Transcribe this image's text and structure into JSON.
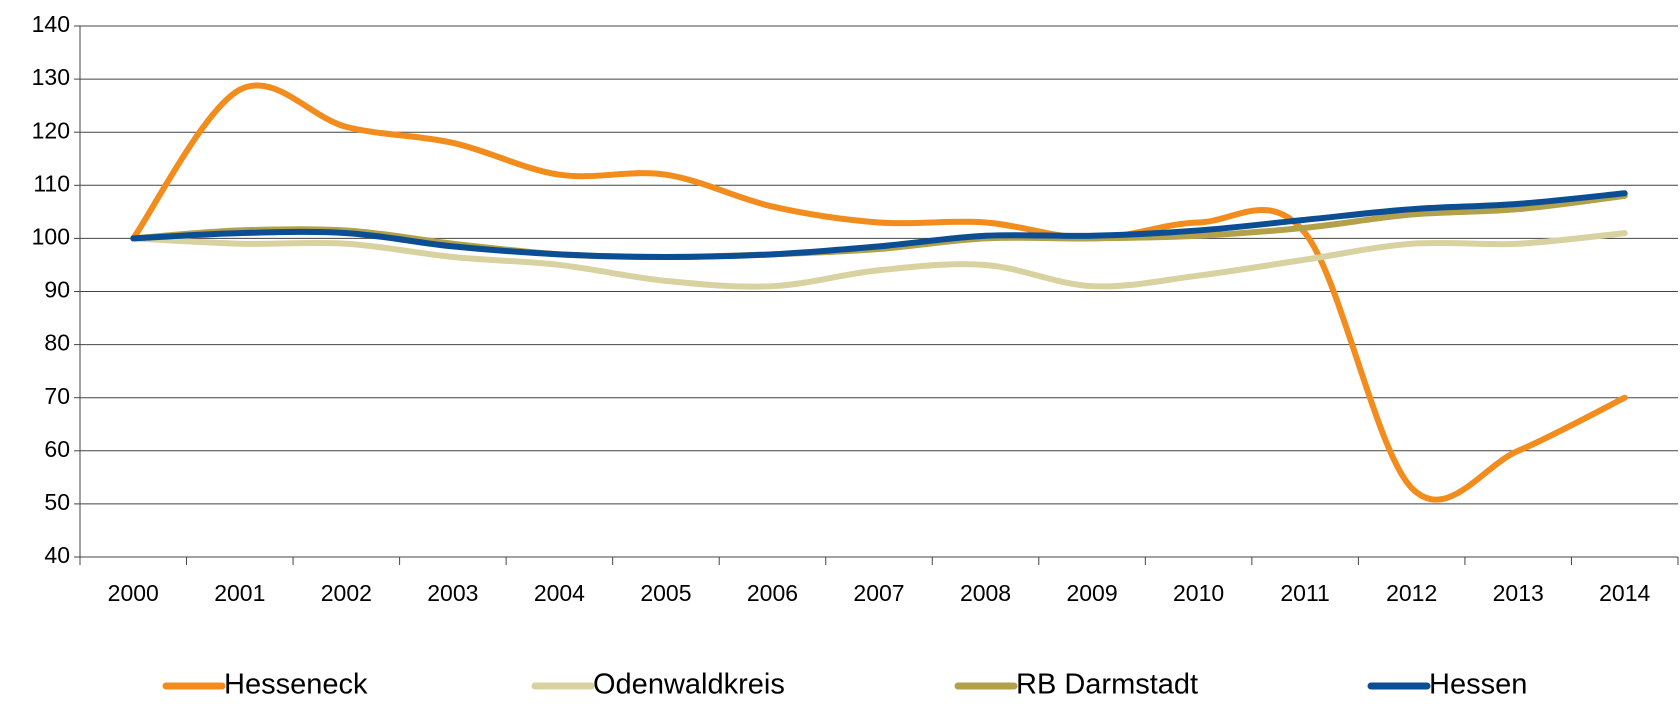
{
  "chart_data": {
    "type": "line",
    "categories": [
      "2000",
      "2001",
      "2002",
      "2003",
      "2004",
      "2005",
      "2006",
      "2007",
      "2008",
      "2009",
      "2010",
      "2011",
      "2012",
      "2013",
      "2014"
    ],
    "series": [
      {
        "name": "Hesseneck",
        "color": "#f28c1c",
        "values": [
          100,
          128,
          121,
          118,
          112,
          112,
          106,
          103,
          103,
          100,
          103,
          101,
          53,
          60,
          70
        ]
      },
      {
        "name": "Odenwaldkreis",
        "color": "#d8d2a0",
        "values": [
          100,
          99,
          99,
          96.5,
          95,
          92,
          91,
          94,
          95,
          91,
          93,
          96,
          99,
          99,
          101
        ]
      },
      {
        "name": "RB Darmstadt",
        "color": "#b3a04a",
        "values": [
          100,
          101.5,
          101.5,
          99,
          97,
          96.5,
          97,
          98,
          100,
          100,
          100.5,
          102,
          104.5,
          105.5,
          108
        ]
      },
      {
        "name": "Hessen",
        "color": "#0b4e93",
        "values": [
          100,
          101,
          101,
          98.5,
          97,
          96.5,
          97,
          98.5,
          100.5,
          100.5,
          101.5,
          103.5,
          105.5,
          106.5,
          108.5
        ]
      }
    ],
    "ylim": [
      40,
      140
    ],
    "yticks": [
      40,
      50,
      60,
      70,
      80,
      90,
      100,
      110,
      120,
      130,
      140
    ],
    "grid": true,
    "legend": "bottom"
  }
}
